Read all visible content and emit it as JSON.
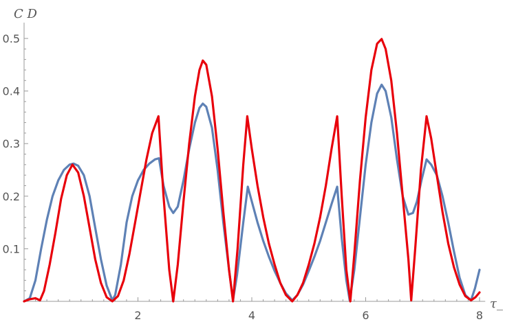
{
  "chart_data": {
    "type": "line",
    "title": "",
    "xlabel": "τ_",
    "ylabel": "C D",
    "xlim": [
      0,
      8.1
    ],
    "ylim": [
      0,
      0.53
    ],
    "x_ticks": [
      2,
      4,
      6,
      8
    ],
    "x_tick_labels": [
      "2",
      "4",
      "6",
      "8"
    ],
    "y_ticks": [
      0.1,
      0.2,
      0.3,
      0.4,
      0.5
    ],
    "y_tick_labels": [
      "0.1",
      "0.2",
      "0.3",
      "0.4",
      "0.5"
    ],
    "grid": false,
    "legend": "none",
    "series": [
      {
        "color": "#5e81b5",
        "points": [
          [
            0,
            0
          ],
          [
            0.1,
            0.006
          ],
          [
            0.2,
            0.04
          ],
          [
            0.3,
            0.1
          ],
          [
            0.4,
            0.155
          ],
          [
            0.5,
            0.2
          ],
          [
            0.6,
            0.23
          ],
          [
            0.7,
            0.25
          ],
          [
            0.8,
            0.26
          ],
          [
            0.87,
            0.262
          ],
          [
            0.95,
            0.258
          ],
          [
            1.05,
            0.24
          ],
          [
            1.15,
            0.2
          ],
          [
            1.25,
            0.14
          ],
          [
            1.35,
            0.08
          ],
          [
            1.45,
            0.03
          ],
          [
            1.55,
            0.002
          ],
          [
            1.6,
            0.012
          ],
          [
            1.7,
            0.07
          ],
          [
            1.8,
            0.15
          ],
          [
            1.9,
            0.2
          ],
          [
            2.0,
            0.23
          ],
          [
            2.1,
            0.25
          ],
          [
            2.2,
            0.262
          ],
          [
            2.3,
            0.27
          ],
          [
            2.37,
            0.272
          ],
          [
            2.45,
            0.22
          ],
          [
            2.55,
            0.18
          ],
          [
            2.62,
            0.168
          ],
          [
            2.7,
            0.18
          ],
          [
            2.8,
            0.23
          ],
          [
            2.9,
            0.29
          ],
          [
            3.0,
            0.34
          ],
          [
            3.08,
            0.368
          ],
          [
            3.14,
            0.376
          ],
          [
            3.2,
            0.37
          ],
          [
            3.3,
            0.33
          ],
          [
            3.4,
            0.25
          ],
          [
            3.5,
            0.15
          ],
          [
            3.6,
            0.06
          ],
          [
            3.67,
            0.003
          ],
          [
            3.74,
            0.05
          ],
          [
            3.85,
            0.15
          ],
          [
            3.93,
            0.218
          ],
          [
            4.0,
            0.19
          ],
          [
            4.1,
            0.15
          ],
          [
            4.2,
            0.115
          ],
          [
            4.3,
            0.085
          ],
          [
            4.4,
            0.058
          ],
          [
            4.5,
            0.035
          ],
          [
            4.6,
            0.015
          ],
          [
            4.71,
            0.002
          ],
          [
            4.8,
            0.012
          ],
          [
            4.9,
            0.032
          ],
          [
            5.0,
            0.058
          ],
          [
            5.1,
            0.085
          ],
          [
            5.2,
            0.115
          ],
          [
            5.3,
            0.15
          ],
          [
            5.4,
            0.185
          ],
          [
            5.5,
            0.218
          ],
          [
            5.58,
            0.12
          ],
          [
            5.66,
            0.04
          ],
          [
            5.72,
            0.002
          ],
          [
            5.8,
            0.06
          ],
          [
            5.9,
            0.16
          ],
          [
            6.0,
            0.26
          ],
          [
            6.1,
            0.34
          ],
          [
            6.2,
            0.395
          ],
          [
            6.28,
            0.412
          ],
          [
            6.35,
            0.4
          ],
          [
            6.45,
            0.35
          ],
          [
            6.55,
            0.27
          ],
          [
            6.65,
            0.2
          ],
          [
            6.75,
            0.165
          ],
          [
            6.83,
            0.168
          ],
          [
            6.9,
            0.19
          ],
          [
            6.98,
            0.23
          ],
          [
            7.07,
            0.27
          ],
          [
            7.15,
            0.26
          ],
          [
            7.25,
            0.24
          ],
          [
            7.35,
            0.2
          ],
          [
            7.45,
            0.15
          ],
          [
            7.55,
            0.095
          ],
          [
            7.65,
            0.045
          ],
          [
            7.75,
            0.012
          ],
          [
            7.85,
            0.002
          ],
          [
            7.92,
            0.025
          ],
          [
            8.0,
            0.06
          ]
        ]
      },
      {
        "color": "#e8000b",
        "points": [
          [
            0,
            0
          ],
          [
            0.1,
            0.004
          ],
          [
            0.2,
            0.006
          ],
          [
            0.28,
            0.002
          ],
          [
            0.35,
            0.02
          ],
          [
            0.45,
            0.07
          ],
          [
            0.55,
            0.13
          ],
          [
            0.65,
            0.195
          ],
          [
            0.75,
            0.24
          ],
          [
            0.85,
            0.26
          ],
          [
            0.95,
            0.245
          ],
          [
            1.05,
            0.2
          ],
          [
            1.15,
            0.14
          ],
          [
            1.25,
            0.08
          ],
          [
            1.35,
            0.035
          ],
          [
            1.45,
            0.008
          ],
          [
            1.55,
            0
          ],
          [
            1.65,
            0.01
          ],
          [
            1.75,
            0.04
          ],
          [
            1.85,
            0.09
          ],
          [
            1.95,
            0.15
          ],
          [
            2.05,
            0.21
          ],
          [
            2.15,
            0.27
          ],
          [
            2.25,
            0.32
          ],
          [
            2.36,
            0.352
          ],
          [
            2.45,
            0.2
          ],
          [
            2.55,
            0.06
          ],
          [
            2.62,
            0
          ],
          [
            2.7,
            0.07
          ],
          [
            2.8,
            0.19
          ],
          [
            2.9,
            0.3
          ],
          [
            3.0,
            0.39
          ],
          [
            3.08,
            0.44
          ],
          [
            3.14,
            0.458
          ],
          [
            3.2,
            0.45
          ],
          [
            3.3,
            0.39
          ],
          [
            3.4,
            0.29
          ],
          [
            3.5,
            0.17
          ],
          [
            3.6,
            0.06
          ],
          [
            3.67,
            0
          ],
          [
            3.75,
            0.1
          ],
          [
            3.85,
            0.26
          ],
          [
            3.92,
            0.352
          ],
          [
            4.0,
            0.29
          ],
          [
            4.1,
            0.22
          ],
          [
            4.2,
            0.16
          ],
          [
            4.3,
            0.11
          ],
          [
            4.4,
            0.07
          ],
          [
            4.5,
            0.035
          ],
          [
            4.6,
            0.012
          ],
          [
            4.71,
            0
          ],
          [
            4.8,
            0.012
          ],
          [
            4.9,
            0.035
          ],
          [
            5.0,
            0.07
          ],
          [
            5.1,
            0.11
          ],
          [
            5.2,
            0.16
          ],
          [
            5.3,
            0.22
          ],
          [
            5.4,
            0.29
          ],
          [
            5.5,
            0.352
          ],
          [
            5.58,
            0.2
          ],
          [
            5.66,
            0.06
          ],
          [
            5.73,
            0
          ],
          [
            5.8,
            0.09
          ],
          [
            5.9,
            0.23
          ],
          [
            6.0,
            0.35
          ],
          [
            6.1,
            0.44
          ],
          [
            6.2,
            0.49
          ],
          [
            6.28,
            0.499
          ],
          [
            6.35,
            0.48
          ],
          [
            6.45,
            0.42
          ],
          [
            6.55,
            0.32
          ],
          [
            6.65,
            0.2
          ],
          [
            6.75,
            0.08
          ],
          [
            6.8,
            0.002
          ],
          [
            6.87,
            0.1
          ],
          [
            6.97,
            0.25
          ],
          [
            7.07,
            0.352
          ],
          [
            7.15,
            0.31
          ],
          [
            7.25,
            0.24
          ],
          [
            7.35,
            0.17
          ],
          [
            7.45,
            0.11
          ],
          [
            7.55,
            0.065
          ],
          [
            7.65,
            0.032
          ],
          [
            7.75,
            0.01
          ],
          [
            7.85,
            0.002
          ],
          [
            7.93,
            0.008
          ],
          [
            8.0,
            0.017
          ]
        ]
      }
    ]
  }
}
